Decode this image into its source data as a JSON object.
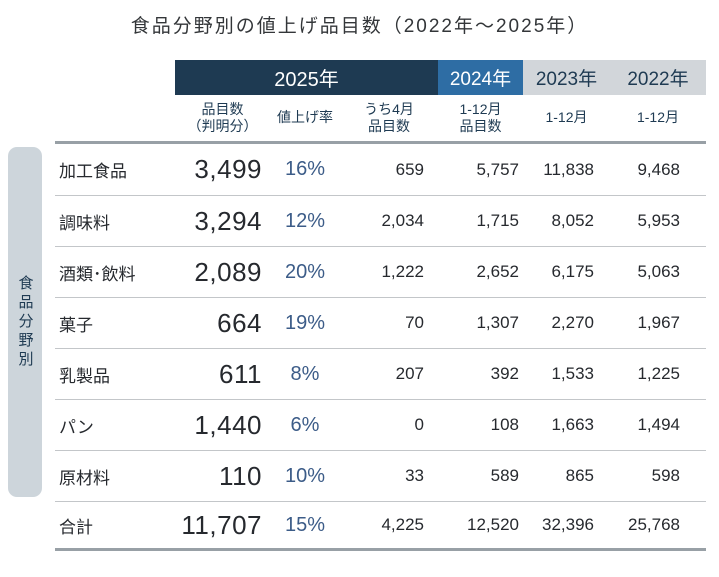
{
  "title": "食品分野別の値上げ品目数（2022年～2025年）",
  "side_label": "食品分野別",
  "colors": {
    "navy": "#1e3a52",
    "blue": "#2e6da4",
    "gray_header": "#d2d6da",
    "side_band": "#cdd5db",
    "percent_blue": "#3c5c88"
  },
  "table": {
    "year_headers": {
      "y2025": "2025年",
      "y2024": "2024年",
      "y2023": "2023年",
      "y2022": "2022年"
    },
    "sub_headers": {
      "col1_line1": "品目数",
      "col1_line2": "（判明分）",
      "col2_line1": "値上げ率",
      "col3_line1": "うち4月",
      "col3_line2": "品目数",
      "col4_line1": "1-12月",
      "col4_line2": "品目数",
      "col5_line1": "1-12月",
      "col6_line1": "1-12月"
    },
    "rows": [
      {
        "category": "加工食品",
        "items": "3,499",
        "rate": "16%",
        "april": "659",
        "y2024": "5,757",
        "y2023": "11,838",
        "y2022": "9,468"
      },
      {
        "category": "調味料",
        "items": "3,294",
        "rate": "12%",
        "april": "2,034",
        "y2024": "1,715",
        "y2023": "8,052",
        "y2022": "5,953"
      },
      {
        "category": "酒類･飲料",
        "items": "2,089",
        "rate": "20%",
        "april": "1,222",
        "y2024": "2,652",
        "y2023": "6,175",
        "y2022": "5,063"
      },
      {
        "category": "菓子",
        "items": "664",
        "rate": "19%",
        "april": "70",
        "y2024": "1,307",
        "y2023": "2,270",
        "y2022": "1,967"
      },
      {
        "category": "乳製品",
        "items": "611",
        "rate": "8%",
        "april": "207",
        "y2024": "392",
        "y2023": "1,533",
        "y2022": "1,225"
      },
      {
        "category": "パン",
        "items": "1,440",
        "rate": "6%",
        "april": "0",
        "y2024": "108",
        "y2023": "1,663",
        "y2022": "1,494"
      },
      {
        "category": "原材料",
        "items": "110",
        "rate": "10%",
        "april": "33",
        "y2024": "589",
        "y2023": "865",
        "y2022": "598"
      }
    ],
    "total": {
      "category": "合計",
      "items": "11,707",
      "rate": "15%",
      "april": "4,225",
      "y2024": "12,520",
      "y2023": "32,396",
      "y2022": "25,768"
    }
  },
  "chart_data": {
    "type": "table",
    "title": "食品分野別の値上げ品目数（2022年～2025年）",
    "row_axis_label": "食品分野別",
    "column_groups": [
      "2025年",
      "2025年",
      "2025年",
      "2024年",
      "2023年",
      "2022年"
    ],
    "columns": [
      "品目数（判明分）",
      "値上げ率",
      "うち4月品目数",
      "1-12月品目数",
      "1-12月",
      "1-12月"
    ],
    "rows": [
      {
        "category": "加工食品",
        "values": [
          3499,
          "16%",
          659,
          5757,
          11838,
          9468
        ]
      },
      {
        "category": "調味料",
        "values": [
          3294,
          "12%",
          2034,
          1715,
          8052,
          5953
        ]
      },
      {
        "category": "酒類･飲料",
        "values": [
          2089,
          "20%",
          1222,
          2652,
          6175,
          5063
        ]
      },
      {
        "category": "菓子",
        "values": [
          664,
          "19%",
          70,
          1307,
          2270,
          1967
        ]
      },
      {
        "category": "乳製品",
        "values": [
          611,
          "8%",
          207,
          392,
          1533,
          1225
        ]
      },
      {
        "category": "パン",
        "values": [
          1440,
          "6%",
          0,
          108,
          1663,
          1494
        ]
      },
      {
        "category": "原材料",
        "values": [
          110,
          "10%",
          33,
          589,
          865,
          598
        ]
      }
    ],
    "total": {
      "category": "合計",
      "values": [
        11707,
        "15%",
        4225,
        12520,
        32396,
        25768
      ]
    }
  }
}
